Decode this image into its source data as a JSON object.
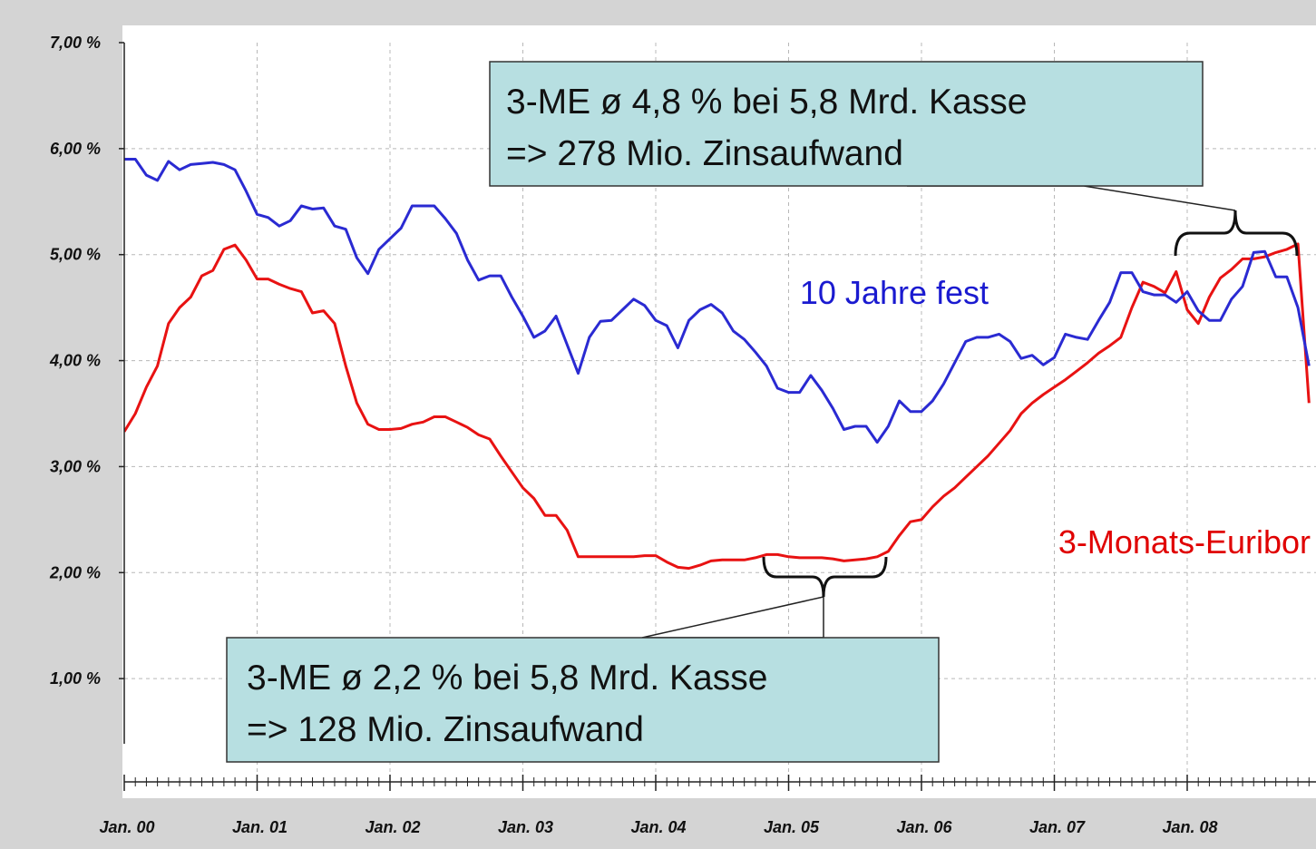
{
  "chart_data": {
    "type": "line",
    "x": [
      "2000-01",
      "2000-02",
      "2000-03",
      "2000-04",
      "2000-05",
      "2000-06",
      "2000-07",
      "2000-08",
      "2000-09",
      "2000-10",
      "2000-11",
      "2000-12",
      "2001-01",
      "2001-02",
      "2001-03",
      "2001-04",
      "2001-05",
      "2001-06",
      "2001-07",
      "2001-08",
      "2001-09",
      "2001-10",
      "2001-11",
      "2001-12",
      "2002-01",
      "2002-02",
      "2002-03",
      "2002-04",
      "2002-05",
      "2002-06",
      "2002-07",
      "2002-08",
      "2002-09",
      "2002-10",
      "2002-11",
      "2002-12",
      "2003-01",
      "2003-02",
      "2003-03",
      "2003-04",
      "2003-05",
      "2003-06",
      "2003-07",
      "2003-08",
      "2003-09",
      "2003-10",
      "2003-11",
      "2003-12",
      "2004-01",
      "2004-02",
      "2004-03",
      "2004-04",
      "2004-05",
      "2004-06",
      "2004-07",
      "2004-08",
      "2004-09",
      "2004-10",
      "2004-11",
      "2004-12",
      "2005-01",
      "2005-02",
      "2005-03",
      "2005-04",
      "2005-05",
      "2005-06",
      "2005-07",
      "2005-08",
      "2005-09",
      "2005-10",
      "2005-11",
      "2005-12",
      "2006-01",
      "2006-02",
      "2006-03",
      "2006-04",
      "2006-05",
      "2006-06",
      "2006-07",
      "2006-08",
      "2006-09",
      "2006-10",
      "2006-11",
      "2006-12",
      "2007-01",
      "2007-02",
      "2007-03",
      "2007-04",
      "2007-05",
      "2007-06",
      "2007-07",
      "2007-08",
      "2007-09",
      "2007-10",
      "2007-11",
      "2007-12",
      "2008-01",
      "2008-02",
      "2008-03",
      "2008-04",
      "2008-05",
      "2008-06",
      "2008-07",
      "2008-08",
      "2008-09",
      "2008-10",
      "2008-11",
      "2008-12"
    ],
    "series": [
      {
        "name": "10 Jahre fest",
        "color": "#2a2ad2",
        "values": [
          5.9,
          5.9,
          5.75,
          5.7,
          5.88,
          5.8,
          5.85,
          5.86,
          5.87,
          5.85,
          5.8,
          5.6,
          5.38,
          5.35,
          5.27,
          5.32,
          5.46,
          5.43,
          5.44,
          5.27,
          5.24,
          4.97,
          4.82,
          5.05,
          5.15,
          5.25,
          5.46,
          5.46,
          5.46,
          5.34,
          5.2,
          4.95,
          4.76,
          4.8,
          4.8,
          4.6,
          4.42,
          4.22,
          4.28,
          4.42,
          4.15,
          3.88,
          4.22,
          4.37,
          4.38,
          4.48,
          4.58,
          4.52,
          4.38,
          4.33,
          4.12,
          4.38,
          4.48,
          4.53,
          4.45,
          4.28,
          4.2,
          4.08,
          3.95,
          3.74,
          3.7,
          3.7,
          3.86,
          3.72,
          3.55,
          3.35,
          3.38,
          3.38,
          3.23,
          3.38,
          3.62,
          3.52,
          3.52,
          3.62,
          3.78,
          3.98,
          4.18,
          4.22,
          4.22,
          4.25,
          4.18,
          4.02,
          4.05,
          3.96,
          4.03,
          4.25,
          4.22,
          4.2,
          4.38,
          4.55,
          4.83,
          4.83,
          4.65,
          4.62,
          4.62,
          4.55,
          4.65,
          4.47,
          4.38,
          4.38,
          4.58,
          4.7,
          5.02,
          5.03,
          4.79,
          4.79,
          4.5,
          3.95
        ]
      },
      {
        "name": "3-Monats-Euribor",
        "color": "#e81212",
        "values": [
          3.33,
          3.5,
          3.75,
          3.95,
          4.35,
          4.5,
          4.6,
          4.8,
          4.85,
          5.05,
          5.09,
          4.95,
          4.77,
          4.77,
          4.72,
          4.68,
          4.65,
          4.45,
          4.47,
          4.35,
          3.95,
          3.6,
          3.4,
          3.35,
          3.35,
          3.36,
          3.4,
          3.42,
          3.47,
          3.47,
          3.42,
          3.37,
          3.3,
          3.26,
          3.1,
          2.95,
          2.8,
          2.7,
          2.54,
          2.54,
          2.4,
          2.15,
          2.15,
          2.15,
          2.15,
          2.15,
          2.15,
          2.16,
          2.16,
          2.1,
          2.05,
          2.04,
          2.07,
          2.11,
          2.12,
          2.12,
          2.12,
          2.14,
          2.17,
          2.17,
          2.15,
          2.14,
          2.14,
          2.14,
          2.13,
          2.11,
          2.12,
          2.13,
          2.15,
          2.2,
          2.35,
          2.48,
          2.5,
          2.62,
          2.72,
          2.8,
          2.9,
          3.0,
          3.1,
          3.22,
          3.34,
          3.5,
          3.6,
          3.68,
          3.75,
          3.82,
          3.9,
          3.98,
          4.07,
          4.14,
          4.22,
          4.5,
          4.74,
          4.7,
          4.64,
          4.84,
          4.48,
          4.35,
          4.6,
          4.78,
          4.86,
          4.96,
          4.96,
          4.98,
          5.02,
          5.05,
          5.1,
          3.6
        ]
      }
    ],
    "xlim": [
      "2000-01",
      "2009-01"
    ],
    "xticks": [
      {
        "value": "2000-01",
        "label": "Jan. 00"
      },
      {
        "value": "2001-01",
        "label": "Jan. 01"
      },
      {
        "value": "2002-01",
        "label": "Jan. 02"
      },
      {
        "value": "2003-01",
        "label": "Jan. 03"
      },
      {
        "value": "2004-01",
        "label": "Jan. 04"
      },
      {
        "value": "2005-01",
        "label": "Jan. 05"
      },
      {
        "value": "2006-01",
        "label": "Jan. 06"
      },
      {
        "value": "2007-01",
        "label": "Jan. 07"
      },
      {
        "value": "2008-01",
        "label": "Jan. 08"
      }
    ],
    "ylim": [
      0,
      7
    ],
    "yticks": [
      {
        "value": 1,
        "label": "1,00 %"
      },
      {
        "value": 2,
        "label": "2,00 %"
      },
      {
        "value": 3,
        "label": "3,00 %"
      },
      {
        "value": 4,
        "label": "4,00 %"
      },
      {
        "value": 5,
        "label": "5,00 %"
      },
      {
        "value": 6,
        "label": "6,00 %"
      },
      {
        "value": 7,
        "label": "7,00 %"
      }
    ],
    "grid": true,
    "annotations": [
      {
        "lines": [
          "3-ME ø 4,8 % bei 5,8 Mrd. Kasse",
          "=> 278 Mio. Zinsaufwand"
        ]
      },
      {
        "lines": [
          "3-ME ø 2,2 % bei 5,8 Mrd. Kasse",
          "=> 128 Mio. Zinsaufwand"
        ]
      }
    ]
  }
}
